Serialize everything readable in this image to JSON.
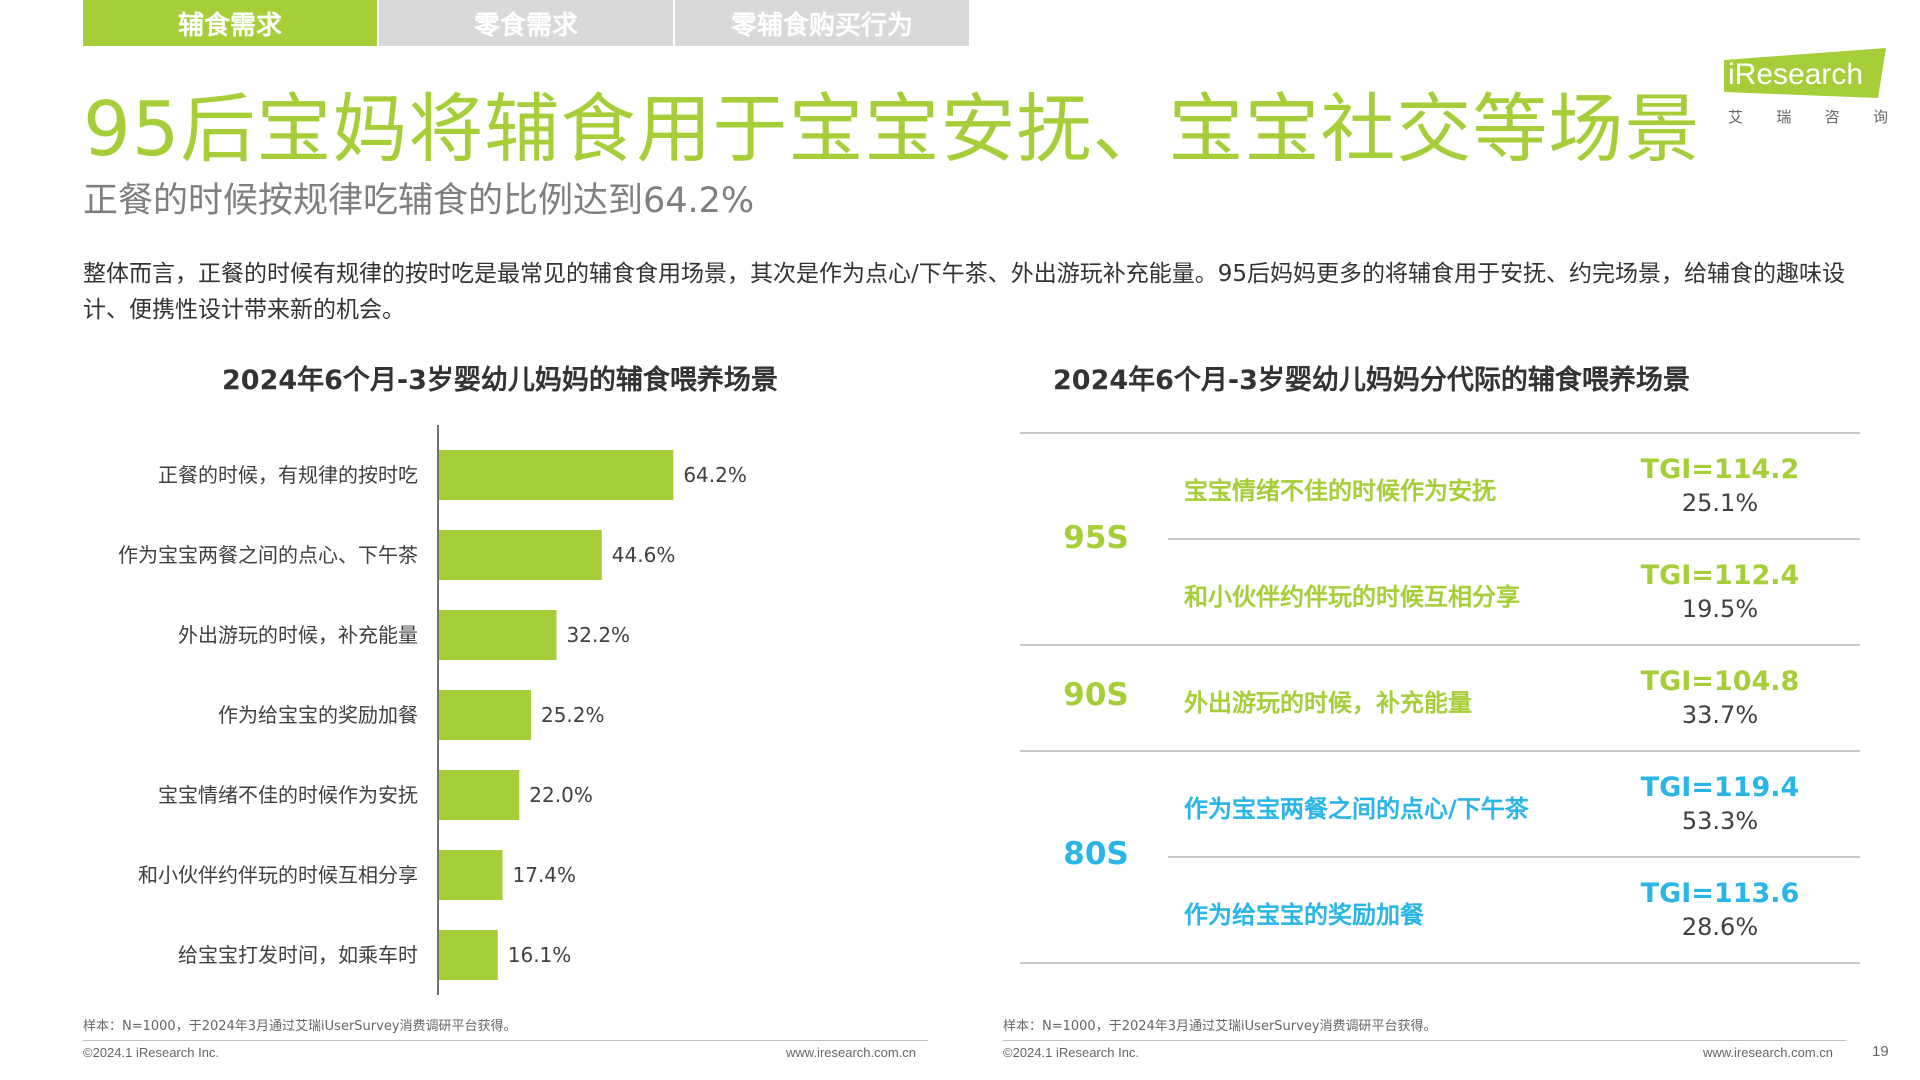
{
  "tabs": [
    "辅食需求",
    "零食需求",
    "零辅食购买行为"
  ],
  "logo": {
    "brand": "iResearch",
    "sub": [
      "艾",
      "瑞",
      "咨",
      "询"
    ]
  },
  "title": "95后宝妈将辅食用于宝宝安抚、宝宝社交等场景",
  "subtitle": "正餐的时候按规律吃辅食的比例达到64.2%",
  "intro": "整体而言，正餐的时候有规律的按时吃是最常见的辅食食用场景，其次是作为点心/下午茶、外出游玩补充能量。95后妈妈更多的将辅食用于安抚、约完场景，给辅食的趣味设计、便携性设计带来新的机会。",
  "left_panel": {
    "title": "2024年6个月-3岁婴幼儿妈妈的辅食喂养场景"
  },
  "right_panel": {
    "title": "2024年6个月-3岁婴幼儿妈妈分代际的辅食喂养场景",
    "groups": [
      {
        "generation": "95S",
        "color": "#a6ce39",
        "rows": [
          {
            "scene": "宝宝情绪不佳的时候作为安抚",
            "tgi": "TGI=114.2",
            "pct": "25.1%"
          },
          {
            "scene": "和小伙伴约伴玩的时候互相分享",
            "tgi": "TGI=112.4",
            "pct": "19.5%"
          }
        ]
      },
      {
        "generation": "90S",
        "color": "#a6ce39",
        "rows": [
          {
            "scene": "外出游玩的时候，补充能量",
            "tgi": "TGI=104.8",
            "pct": "33.7%"
          }
        ]
      },
      {
        "generation": "80S",
        "color": "#29b6e6",
        "rows": [
          {
            "scene": "作为宝宝两餐之间的点心/下午茶",
            "tgi": "TGI=119.4",
            "pct": "53.3%"
          },
          {
            "scene": "作为给宝宝的奖励加餐",
            "tgi": "TGI=113.6",
            "pct": "28.6%"
          }
        ]
      }
    ]
  },
  "chart_data": {
    "type": "bar",
    "orientation": "horizontal",
    "categories": [
      "正餐的时候，有规律的按时吃",
      "作为宝宝两餐之间的点心、下午茶",
      "外出游玩的时候，补充能量",
      "作为给宝宝的奖励加餐",
      "宝宝情绪不佳的时候作为安抚",
      "和小伙伴约伴玩的时候互相分享",
      "给宝宝打发时间，如乘车时"
    ],
    "values": [
      64.2,
      44.6,
      32.2,
      25.2,
      22.0,
      17.4,
      16.1
    ],
    "value_labels": [
      "64.2%",
      "44.6%",
      "32.2%",
      "25.2%",
      "22.0%",
      "17.4%",
      "16.1%"
    ],
    "unit": "%",
    "bar_color": "#a6ce39",
    "xlim": [
      0,
      100
    ],
    "grid": false
  },
  "footer": {
    "note": "样本：N=1000，于2024年3月通过艾瑞iUserSurvey消费调研平台获得。",
    "copyright": "©2024.1 iResearch Inc.",
    "url": "www.iresearch.com.cn",
    "page": "19"
  },
  "colors": {
    "accent": "#a6ce39",
    "blue": "#29b6e6",
    "tab_inactive": "#d9d9d9"
  }
}
